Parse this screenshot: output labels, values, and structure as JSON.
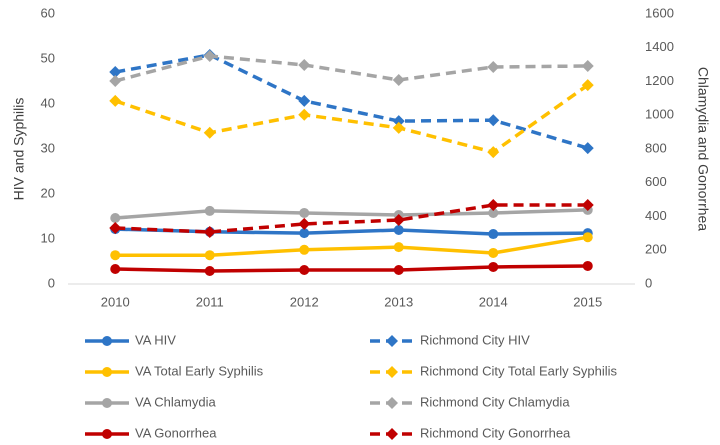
{
  "chart_data": {
    "type": "line",
    "categories": [
      "2010",
      "2011",
      "2012",
      "2013",
      "2014",
      "2015"
    ],
    "y_label": "HIV and Syphilis",
    "y2_label": "Chlamydia and Gonorrhea",
    "ylim": [
      0,
      60
    ],
    "yticks": [
      0,
      10,
      20,
      30,
      40,
      50,
      60
    ],
    "y2lim": [
      0,
      1600
    ],
    "y2ticks": [
      0,
      200,
      400,
      600,
      800,
      1000,
      1200,
      1400,
      1600
    ],
    "grid": false,
    "legend": "bottom",
    "series": [
      {
        "name": "VA HIV",
        "color": "#2e75c6",
        "dashed": false,
        "values": [
          12.2,
          11.6,
          11.3,
          12.0,
          11.1,
          11.3
        ]
      },
      {
        "name": "Richmond City HIV",
        "color": "#2e75c6",
        "dashed": true,
        "values": [
          47.1,
          50.9,
          40.7,
          36.2,
          36.4,
          30.2
        ]
      },
      {
        "name": "VA Total Early Syphilis",
        "color": "#ffc000",
        "dashed": false,
        "values": [
          6.4,
          6.4,
          7.6,
          8.2,
          6.9,
          10.4
        ]
      },
      {
        "name": "Richmond City Total Early Syphilis",
        "color": "#ffc000",
        "dashed": true,
        "values": [
          40.7,
          33.6,
          37.6,
          34.7,
          29.3,
          44.2
        ]
      },
      {
        "name": "VA Chlamydia",
        "color": "#a5a5a5",
        "dashed": false,
        "axis": "y2",
        "values": [
          391,
          433,
          421,
          409,
          421,
          439
        ]
      },
      {
        "name": "Richmond City Chlamydia",
        "color": "#a5a5a5",
        "dashed": true,
        "axis": "y2",
        "values": [
          1203,
          1351,
          1298,
          1209,
          1286,
          1292
        ]
      },
      {
        "name": "VA Gonorrhea",
        "color": "#c00000",
        "dashed": false,
        "axis": "y2",
        "values": [
          89,
          77,
          83,
          83,
          101,
          107
        ]
      },
      {
        "name": "Richmond City Gonorrhea",
        "color": "#c00000",
        "dashed": true,
        "axis": "y2",
        "values": [
          332,
          308,
          356,
          379,
          468,
          468
        ]
      }
    ]
  }
}
